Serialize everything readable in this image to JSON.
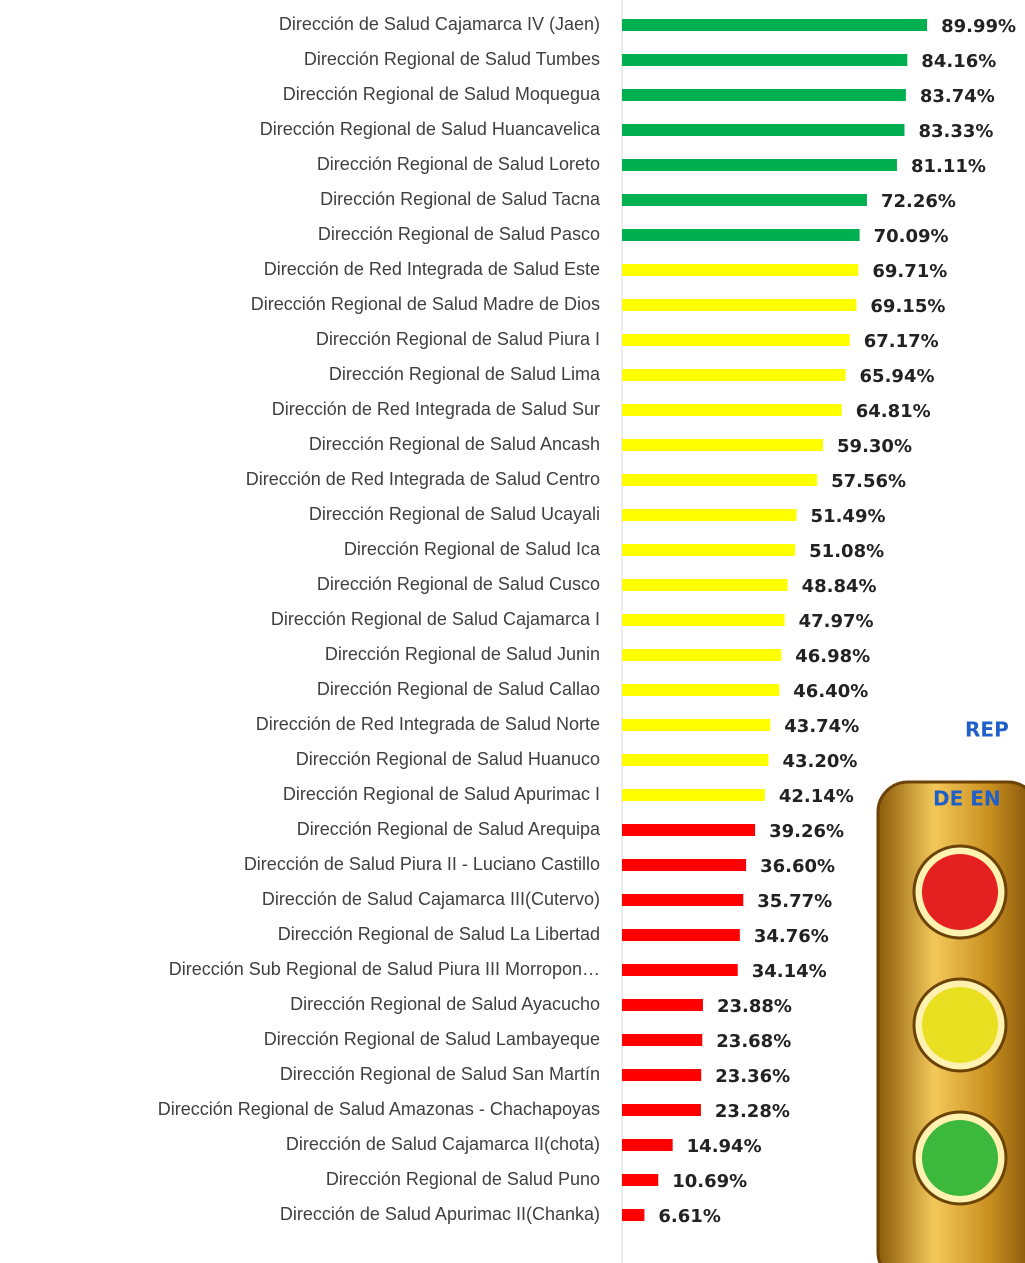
{
  "chart_data": {
    "type": "bar",
    "orientation": "horizontal",
    "title_fragments": [
      "REP",
      "DE EN"
    ],
    "categories": [
      "Dirección de Salud Cajamarca IV (Jaen)",
      "Dirección Regional de Salud Tumbes",
      "Dirección Regional de Salud Moquegua",
      "Dirección Regional de Salud Huancavelica",
      "Dirección Regional de Salud Loreto",
      "Dirección Regional de Salud Tacna",
      "Dirección Regional de Salud Pasco",
      "Dirección de Red Integrada de Salud Este",
      "Dirección Regional de Salud Madre de Dios",
      "Dirección Regional de Salud Piura I",
      "Dirección Regional de Salud Lima",
      "Dirección de Red Integrada de Salud Sur",
      "Dirección Regional de Salud Ancash",
      "Dirección de Red Integrada de Salud Centro",
      "Dirección Regional de Salud Ucayali",
      "Dirección Regional de Salud Ica",
      "Dirección Regional de Salud Cusco",
      "Dirección Regional de Salud Cajamarca I",
      "Dirección Regional de Salud Junin",
      "Dirección Regional de Salud Callao",
      "Dirección de Red Integrada de Salud Norte",
      "Dirección Regional de Salud Huanuco",
      "Dirección Regional de Salud Apurimac I",
      "Dirección Regional de Salud Arequipa",
      "Dirección de Salud Piura II - Luciano Castillo",
      "Dirección de Salud Cajamarca III(Cutervo)",
      "Dirección Regional de Salud La Libertad",
      "Dirección Sub Regional de Salud Piura III Morropon…",
      "Dirección Regional de Salud Ayacucho",
      "Dirección Regional de Salud Lambayeque",
      "Dirección Regional de Salud San Martín",
      "Dirección Regional de Salud Amazonas - Chachapoyas",
      "Dirección de Salud Cajamarca II(chota)",
      "Dirección Regional de Salud Puno",
      "Dirección de Salud Apurimac II(Chanka)"
    ],
    "values": [
      89.99,
      84.16,
      83.74,
      83.33,
      81.11,
      72.26,
      70.09,
      69.71,
      69.15,
      67.17,
      65.94,
      64.81,
      59.3,
      57.56,
      51.49,
      51.08,
      48.84,
      47.97,
      46.98,
      46.4,
      43.74,
      43.2,
      42.14,
      39.26,
      36.6,
      35.77,
      34.76,
      34.14,
      23.88,
      23.68,
      23.36,
      23.28,
      14.94,
      10.69,
      6.61
    ],
    "value_labels": [
      "89.99%",
      "84.16%",
      "83.74%",
      "83.33%",
      "81.11%",
      "72.26%",
      "70.09%",
      "69.71%",
      "69.15%",
      "67.17%",
      "65.94%",
      "64.81%",
      "59.30%",
      "57.56%",
      "51.49%",
      "51.08%",
      "48.84%",
      "47.97%",
      "46.98%",
      "46.40%",
      "43.74%",
      "43.20%",
      "42.14%",
      "39.26%",
      "36.60%",
      "35.77%",
      "34.76%",
      "34.14%",
      "23.88%",
      "23.68%",
      "23.36%",
      "23.28%",
      "14.94%",
      "10.69%",
      "6.61%"
    ],
    "colors": [
      "#00b050",
      "#00b050",
      "#00b050",
      "#00b050",
      "#00b050",
      "#00b050",
      "#00b050",
      "#ffff00",
      "#ffff00",
      "#ffff00",
      "#ffff00",
      "#ffff00",
      "#ffff00",
      "#ffff00",
      "#ffff00",
      "#ffff00",
      "#ffff00",
      "#ffff00",
      "#ffff00",
      "#ffff00",
      "#ffff00",
      "#ffff00",
      "#ffff00",
      "#ff0000",
      "#ff0000",
      "#ff0000",
      "#ff0000",
      "#ff0000",
      "#ff0000",
      "#ff0000",
      "#ff0000",
      "#ff0000",
      "#ff0000",
      "#ff0000",
      "#ff0000"
    ],
    "xlim": [
      0,
      100
    ]
  }
}
